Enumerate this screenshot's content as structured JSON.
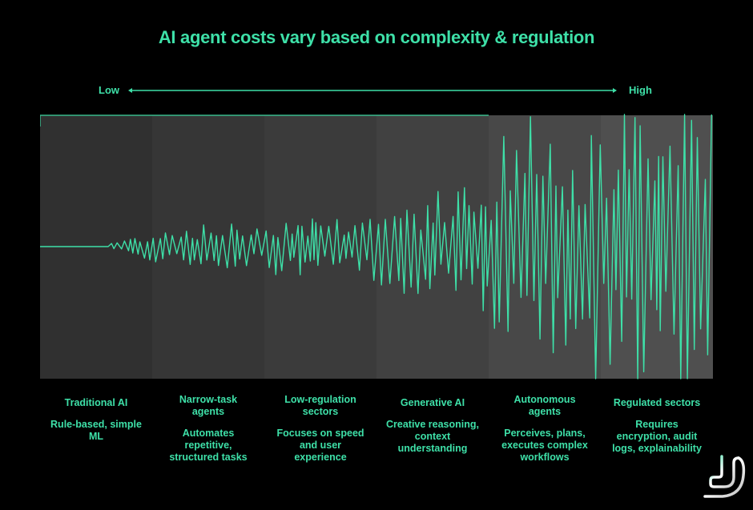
{
  "title": "AI agent costs vary based on complexity & regulation",
  "scale": {
    "low_label": "Low",
    "high_label": "High",
    "arrow_icon": "double-headed-arrow-icon"
  },
  "colors": {
    "accent": "#3ee0a8",
    "background": "#000000",
    "band_fills": [
      "#303030",
      "#363636",
      "#3b3b3b",
      "#414141",
      "#484848",
      "#4f4f4f"
    ]
  },
  "stages": [
    {
      "title": "Traditional AI",
      "description": "Rule-based, simple ML"
    },
    {
      "title": "Narrow-task agents",
      "description": "Automates repetitive, structured tasks"
    },
    {
      "title": "Low-regulation sectors",
      "description": "Focuses on speed and user experience"
    },
    {
      "title": "Generative AI",
      "description": "Creative reasoning, context understanding"
    },
    {
      "title": "Autonomous agents",
      "description": "Perceives, plans, executes complex workflows"
    },
    {
      "title": "Regulated sectors",
      "description": "Requires encryption, audit logs, explainability"
    }
  ],
  "waveform": {
    "description": "Signal amplitude grows left to right: flat line in Traditional AI, increasing oscillation through later stages, largest spikes in Regulated sectors",
    "amplitude_by_stage": [
      0.05,
      0.12,
      0.18,
      0.25,
      0.55,
      0.9
    ]
  },
  "logo": {
    "icon": "brand-logo-icon"
  }
}
